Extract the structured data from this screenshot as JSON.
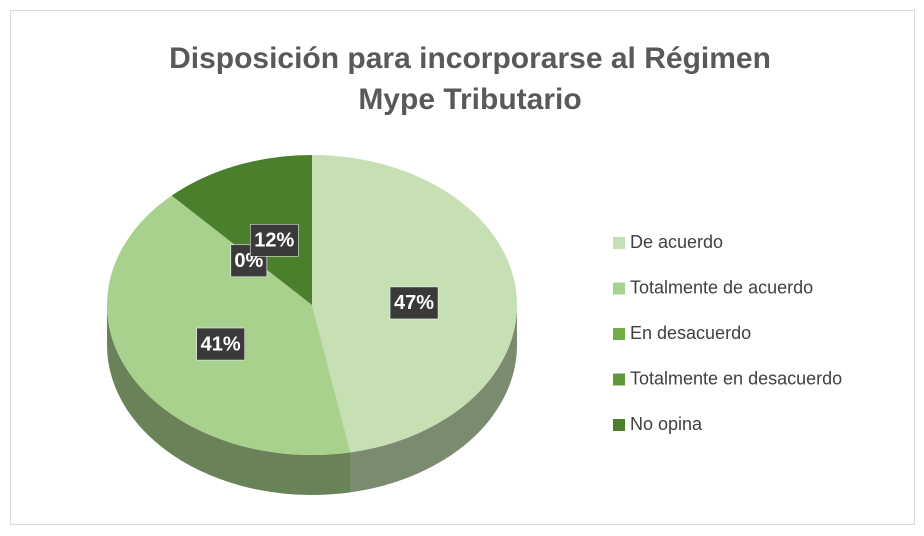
{
  "chart_data": {
    "type": "pie",
    "title": [
      "Disposición para incorporarse al Régimen",
      "Mype Tributario"
    ],
    "categories": [
      "De acuerdo",
      "Totalmente de acuerdo",
      "En desacuerdo",
      "Totalmente en desacuerdo",
      "No opina"
    ],
    "values": [
      47,
      41,
      0,
      0,
      12
    ],
    "value_labels": [
      "47%",
      "41%",
      "0%",
      "0%",
      "12%"
    ],
    "colors": [
      "#c6e0b4",
      "#a9d18e",
      "#70ad47",
      "#5e9a3b",
      "#4a7f2c"
    ],
    "legend": "right"
  }
}
